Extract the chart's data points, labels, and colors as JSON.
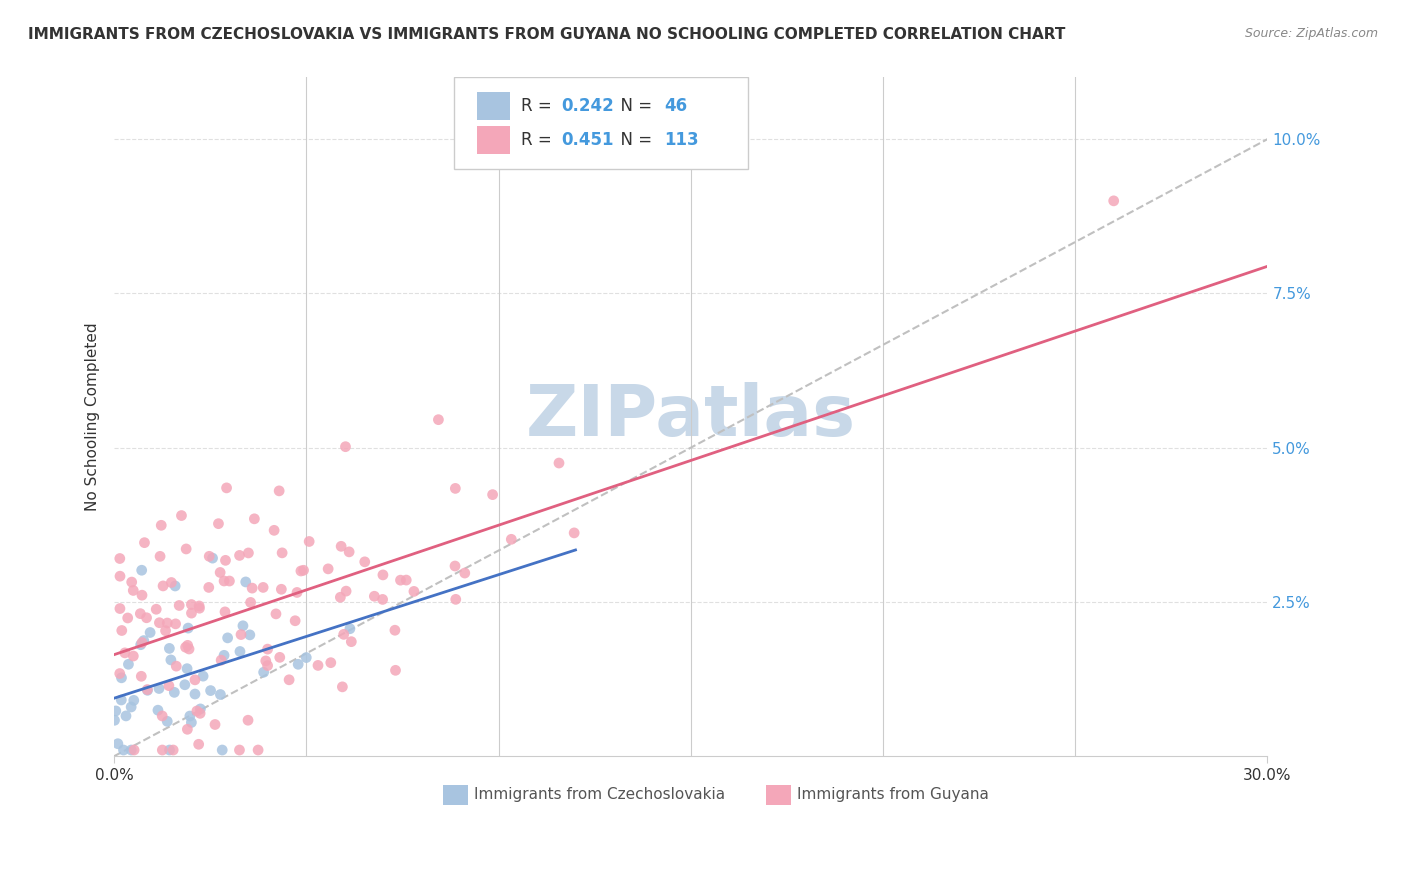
{
  "title": "IMMIGRANTS FROM CZECHOSLOVAKIA VS IMMIGRANTS FROM GUYANA NO SCHOOLING COMPLETED CORRELATION CHART",
  "source": "Source: ZipAtlas.com",
  "xlim": [
    0.0,
    0.3
  ],
  "ylim": [
    0.0,
    0.11
  ],
  "legend_entry1": {
    "label": "Immigrants from Czechoslovakia",
    "R": 0.242,
    "N": 46,
    "color": "#a8c4e0"
  },
  "legend_entry2": {
    "label": "Immigrants from Guyana",
    "R": 0.451,
    "N": 113,
    "color": "#f4a7b9"
  },
  "watermark": "ZIPatlas",
  "watermark_color": "#c8d8e8",
  "background_color": "#ffffff",
  "grid_color": "#e0e0e0",
  "dot_size": 60,
  "line_color_czech": "#4472c4",
  "line_color_guyana": "#e06080",
  "diagonal_color": "#c0c0c0"
}
